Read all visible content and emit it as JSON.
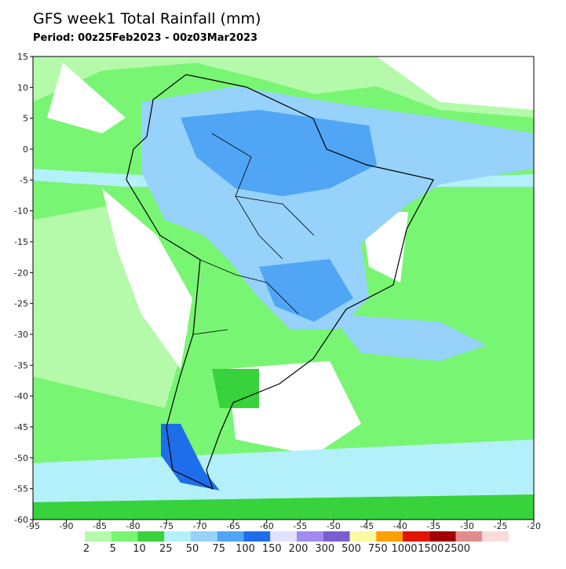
{
  "header": {
    "title": "GFS week1 Total Rainfall (mm)",
    "period": "Period: 00z25Feb2023 - 00z03Mar2023"
  },
  "map": {
    "xticks": [
      -95,
      -90,
      -85,
      -80,
      -75,
      -70,
      -65,
      -60,
      -55,
      -50,
      -45,
      -40,
      -35,
      -30,
      -25,
      -20
    ],
    "yticks": [
      15,
      10,
      5,
      0,
      -5,
      -10,
      -15,
      -20,
      -25,
      -30,
      -35,
      -40,
      -45,
      -50,
      -55,
      -60
    ]
  },
  "legend": {
    "levels": [
      2,
      5,
      10,
      25,
      50,
      75,
      100,
      150,
      200,
      300,
      500,
      750,
      1000,
      1500,
      2500
    ],
    "colors": [
      "#b4faaa",
      "#78f573",
      "#37d23c",
      "#b4f0fa",
      "#96d2fa",
      "#50a5f5",
      "#1e6eeb",
      "#e1e1ff",
      "#a08cf0",
      "#7b5ed0",
      "#fafaa0",
      "#ffa000",
      "#e11400",
      "#a50000",
      "#e18c8c",
      "#fadcdc"
    ]
  }
}
